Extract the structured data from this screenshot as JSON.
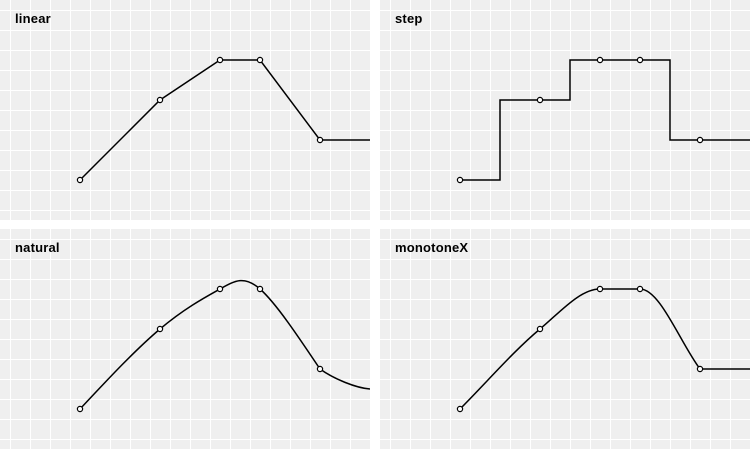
{
  "colors": {
    "panel_background": "#efefef",
    "gridline": "#ffffff",
    "line": "#000000",
    "point_fill": "#ffffff"
  },
  "chart_data": [
    {
      "type": "line",
      "title": "linear",
      "interpolation": "linear",
      "x": [
        2,
        4,
        5.5,
        6.5,
        8
      ],
      "y": [
        1,
        3,
        4,
        4,
        2
      ],
      "xlim": [
        0,
        9.25
      ],
      "ylim": [
        0,
        5.5
      ],
      "grid": true
    },
    {
      "type": "line",
      "title": "step",
      "interpolation": "step",
      "x": [
        2,
        4,
        5.5,
        6.5,
        8
      ],
      "y": [
        1,
        3,
        4,
        4,
        2
      ],
      "xlim": [
        0,
        9.25
      ],
      "ylim": [
        0,
        5.5
      ],
      "grid": true
    },
    {
      "type": "line",
      "title": "natural",
      "interpolation": "natural",
      "x": [
        2,
        4,
        5.5,
        6.5,
        8
      ],
      "y": [
        1,
        3,
        4,
        4,
        2
      ],
      "xlim": [
        0,
        9.25
      ],
      "ylim": [
        0,
        5.5
      ],
      "grid": true
    },
    {
      "type": "line",
      "title": "monotoneX",
      "interpolation": "monotoneX",
      "x": [
        2,
        4,
        5.5,
        6.5,
        8
      ],
      "y": [
        1,
        3,
        4,
        4,
        2
      ],
      "xlim": [
        0,
        9.25
      ],
      "ylim": [
        0,
        5.5
      ],
      "grid": true
    }
  ]
}
